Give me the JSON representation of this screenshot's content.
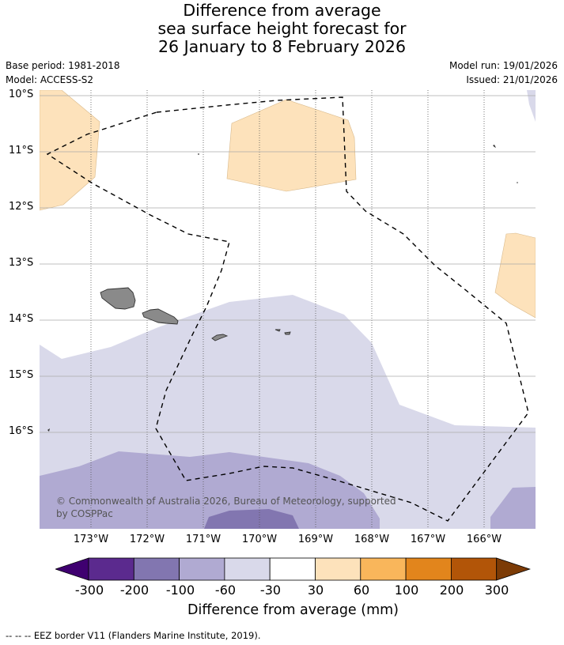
{
  "title": {
    "line1": "Difference from average",
    "line2": "sea surface height forecast for",
    "line3": "26 January to 8 February 2026"
  },
  "meta": {
    "base_period": "Base period: 1981-2018",
    "model": "Model: ACCESS-S2",
    "model_run": "Model run: 19/01/2026",
    "issued": "Issued: 21/01/2026"
  },
  "axes": {
    "lat_labels": [
      "10°S",
      "11°S",
      "12°S",
      "13°S",
      "14°S",
      "15°S",
      "16°S"
    ],
    "lon_labels": [
      "173°W",
      "172°W",
      "171°W",
      "170°W",
      "169°W",
      "168°W",
      "167°W",
      "166°W"
    ]
  },
  "map": {
    "extent": {
      "lon_min": -173.9,
      "lon_max": -165.05,
      "lat_min": -17.75,
      "lat_max": -9.9
    },
    "features": [
      "Samoa islands",
      "American Samoa islands",
      "EEZ border"
    ],
    "colors": {
      "band_30_60": "#fde2bb",
      "band_m30_m60": "#d9d9ea",
      "band_m60_m100": "#b0aad2",
      "band_m100_m200": "#8276b0",
      "coast": "#333333",
      "land": "#8a8a8a"
    }
  },
  "copyright": {
    "line1": "© Commonwealth of Australia 2026, Bureau of Meteorology, supported",
    "line2": "by COSPPac"
  },
  "colorbar": {
    "ticks": [
      "-300",
      "-200",
      "-100",
      "-60",
      "-30",
      "30",
      "60",
      "100",
      "200",
      "300"
    ],
    "colors": [
      "#3f0070",
      "#5b2a8e",
      "#8276b0",
      "#b0aad2",
      "#d9d9ea",
      "#ffffff",
      "#fde2bb",
      "#f9b65b",
      "#e2851c",
      "#b25508",
      "#7c3b06"
    ],
    "title": "Difference from average (mm)"
  },
  "legend": {
    "eez_note": "--  --  -- EEZ border V11 (Flanders Marine Institute, 2019)."
  }
}
